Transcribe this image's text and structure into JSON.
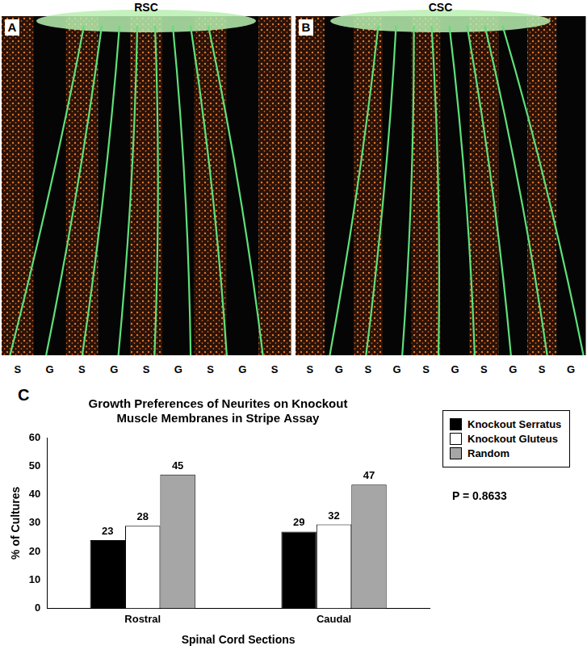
{
  "panels": [
    {
      "label": "A",
      "title": "RSC",
      "stripes": [
        "S",
        "G",
        "S",
        "G",
        "S",
        "G",
        "S",
        "G",
        "S"
      ]
    },
    {
      "label": "B",
      "title": "CSC",
      "stripes": [
        "S",
        "G",
        "S",
        "G",
        "S",
        "G",
        "S",
        "G",
        "S",
        "G"
      ]
    }
  ],
  "chart_label": "C",
  "chart_data": {
    "type": "bar",
    "title": [
      "Growth Preferences of Neurites on Knockout",
      "Muscle Membranes in Stripe Assay"
    ],
    "x_label": "Spinal Cord Sections",
    "y_label": "% of Cultures",
    "categories": [
      "Rostral",
      "Caudal"
    ],
    "series": [
      {
        "name": "Knockout Serratus",
        "color": "#000000",
        "values": [
          24,
          27
        ],
        "counts": [
          23,
          29
        ]
      },
      {
        "name": "Knockout Gluteus",
        "color": "#ffffff",
        "values": [
          29,
          29.5
        ],
        "counts": [
          28,
          32
        ]
      },
      {
        "name": "Random",
        "color": "#a6a6a6",
        "values": [
          47,
          43.5
        ],
        "counts": [
          45,
          47
        ]
      }
    ],
    "ylim": [
      0,
      60
    ],
    "yticks": [
      0,
      10,
      20,
      30,
      40,
      50,
      60
    ],
    "grid": false,
    "legend": "upper right",
    "annotations": [
      "P = 0.8633"
    ]
  }
}
